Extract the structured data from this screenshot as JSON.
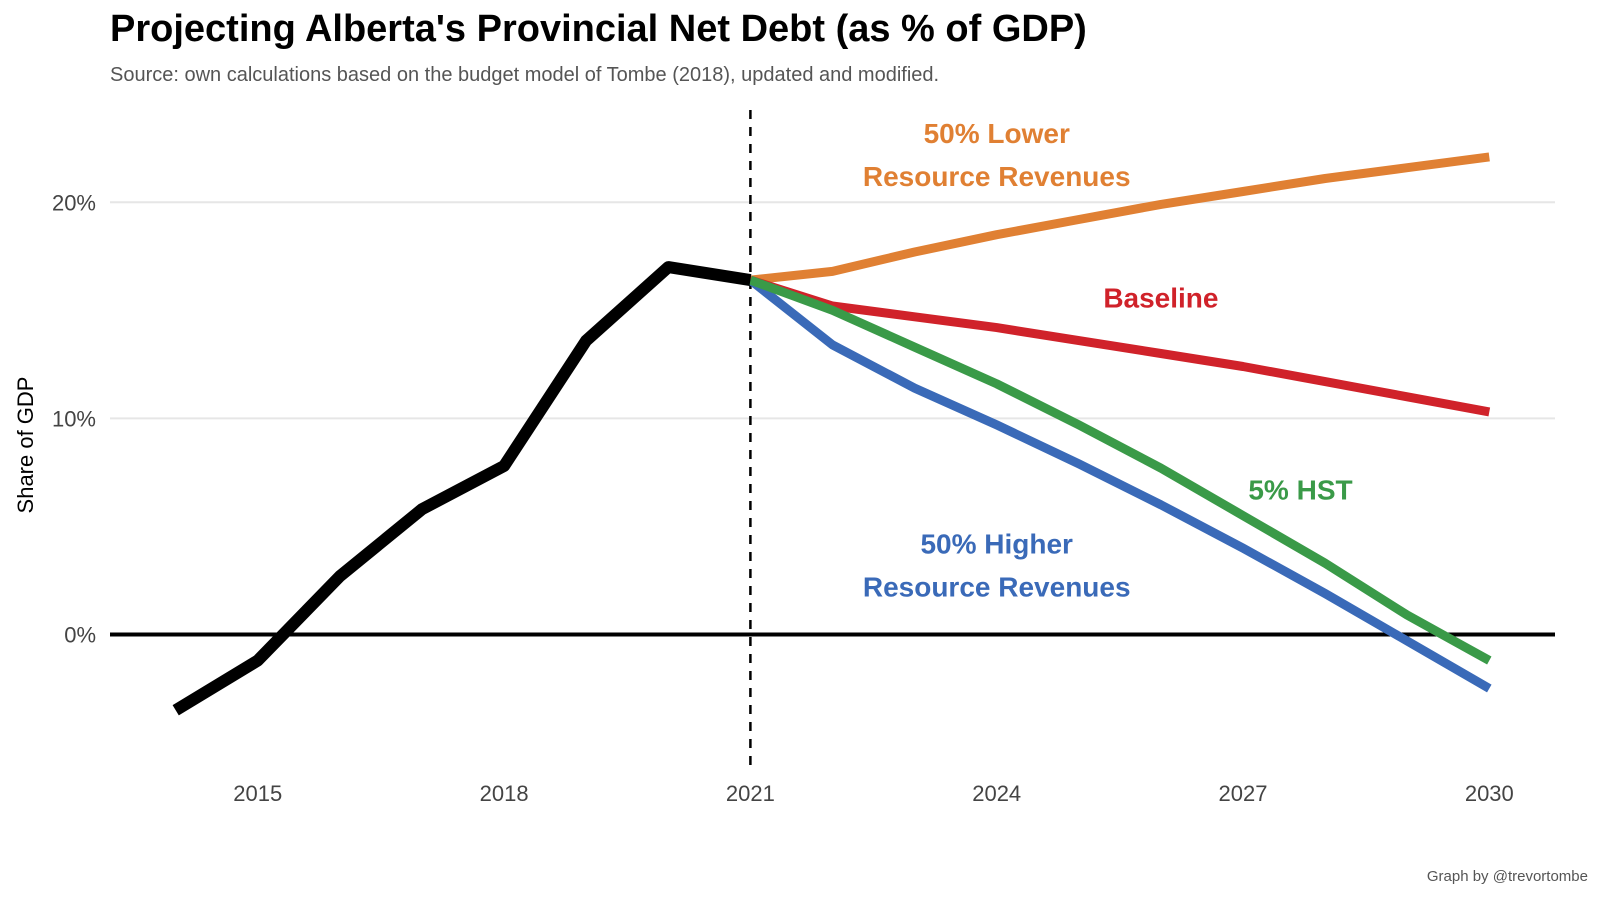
{
  "chart_data": {
    "type": "line",
    "title": "Projecting Alberta's Provincial Net Debt (as % of GDP)",
    "subtitle": "Source: own calculations based on the budget model of Tombe (2018), updated and modified.",
    "caption": "Graph by @trevortombe",
    "xlabel": "",
    "ylabel": "Share of GDP",
    "xlim": [
      2013.2,
      2030.8
    ],
    "ylim": [
      -6.5,
      24.5
    ],
    "x_ticks": [
      2015,
      2018,
      2021,
      2024,
      2027,
      2030
    ],
    "y_ticks": [
      0,
      10,
      20
    ],
    "y_tick_labels": [
      "0%",
      "10%",
      "20%"
    ],
    "grid": "horizontal major",
    "reference_lines": {
      "zero_line": 0,
      "vertical_dashed_x": 2021
    },
    "history": {
      "color": "#000000",
      "x": [
        2014,
        2015,
        2016,
        2017,
        2018,
        2019,
        2020,
        2021
      ],
      "values": [
        -3.5,
        -1.2,
        2.7,
        5.8,
        7.8,
        13.6,
        17.0,
        16.4
      ]
    },
    "projection_x": [
      2021,
      2022,
      2023,
      2024,
      2025,
      2026,
      2027,
      2028,
      2029,
      2030
    ],
    "series": [
      {
        "name": "50% Lower Resource Revenues",
        "label_lines": [
          "50% Lower",
          "Resource Revenues"
        ],
        "color": "#E08033",
        "values": [
          16.4,
          16.8,
          17.7,
          18.5,
          19.2,
          19.9,
          20.5,
          21.1,
          21.6,
          22.1
        ]
      },
      {
        "name": "Baseline",
        "label_lines": [
          "Baseline"
        ],
        "color": "#D0222A",
        "values": [
          16.4,
          15.2,
          14.7,
          14.2,
          13.6,
          13.0,
          12.4,
          11.7,
          11.0,
          10.3
        ]
      },
      {
        "name": "5% HST",
        "label_lines": [
          "5% HST"
        ],
        "color": "#3A9A48",
        "values": [
          16.4,
          15.0,
          13.3,
          11.6,
          9.7,
          7.7,
          5.5,
          3.3,
          0.9,
          -1.2
        ]
      },
      {
        "name": "50% Higher Resource Revenues",
        "label_lines": [
          "50% Higher",
          "Resource Revenues"
        ],
        "color": "#3A6AB8",
        "values": [
          16.4,
          13.4,
          11.4,
          9.7,
          7.9,
          6.0,
          4.0,
          1.9,
          -0.3,
          -2.5
        ]
      }
    ]
  }
}
